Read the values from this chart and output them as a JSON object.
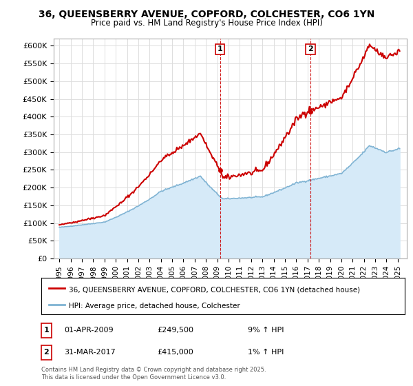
{
  "title": "36, QUEENSBERRY AVENUE, COPFORD, COLCHESTER, CO6 1YN",
  "subtitle": "Price paid vs. HM Land Registry's House Price Index (HPI)",
  "ylabel_ticks": [
    "£0",
    "£50K",
    "£100K",
    "£150K",
    "£200K",
    "£250K",
    "£300K",
    "£350K",
    "£400K",
    "£450K",
    "£500K",
    "£550K",
    "£600K"
  ],
  "ytick_values": [
    0,
    50000,
    100000,
    150000,
    200000,
    250000,
    300000,
    350000,
    400000,
    450000,
    500000,
    550000,
    600000
  ],
  "ylim": [
    0,
    620000
  ],
  "legend_line1": "36, QUEENSBERRY AVENUE, COPFORD, COLCHESTER, CO6 1YN (detached house)",
  "legend_line2": "HPI: Average price, detached house, Colchester",
  "annotation1_label": "1",
  "annotation1_date": "01-APR-2009",
  "annotation1_price": "£249,500",
  "annotation1_hpi": "9% ↑ HPI",
  "annotation2_label": "2",
  "annotation2_date": "31-MAR-2017",
  "annotation2_price": "£415,000",
  "annotation2_hpi": "1% ↑ HPI",
  "copyright_text": "Contains HM Land Registry data © Crown copyright and database right 2025.\nThis data is licensed under the Open Government Licence v3.0.",
  "line1_color": "#cc0000",
  "line2_color": "#7fb3d3",
  "fill2_color": "#d6eaf8",
  "background_color": "#ffffff",
  "grid_color": "#dddddd",
  "annotation_vline_color": "#cc0000",
  "sale1_x": 2009.25,
  "sale1_y": 249500,
  "sale2_x": 2017.25,
  "sale2_y": 415000,
  "xlim_left": 1994.5,
  "xlim_right": 2025.8
}
